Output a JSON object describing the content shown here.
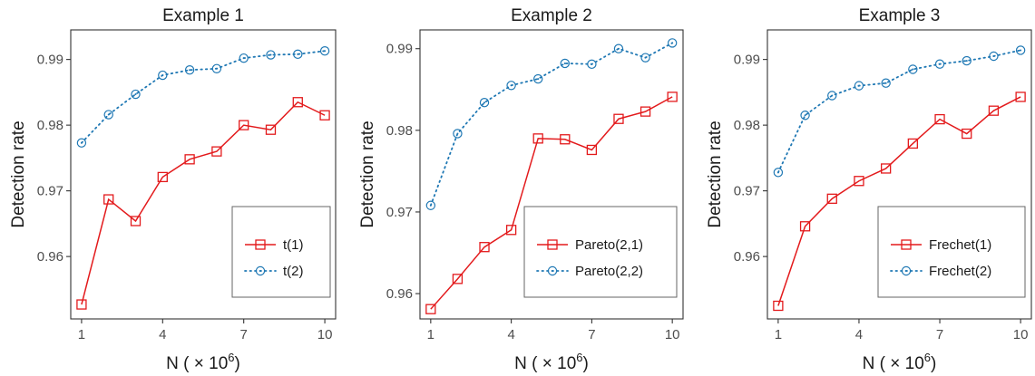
{
  "colors": {
    "series_solid": "#e31a1c",
    "series_dotted": "#1f78b4",
    "axis": "#333333",
    "legend_border": "#666666"
  },
  "chart_data": [
    {
      "type": "line",
      "title": "Example 1",
      "xlabel": "N ( × 10",
      "xlabel_sup": "6",
      "xlabel_close": ")",
      "ylabel": "Detection rate",
      "x": [
        1,
        2,
        3,
        4,
        5,
        6,
        7,
        8,
        9,
        10
      ],
      "xticks": [
        1,
        4,
        7,
        10
      ],
      "yticks": [
        0.96,
        0.97,
        0.98,
        0.99
      ],
      "ytick_labels": [
        "0.96",
        "0.97",
        "0.98",
        "0.99"
      ],
      "xlim": [
        0.6,
        10.4
      ],
      "ylim": [
        0.9505,
        0.9945
      ],
      "legend_position": "bottom-right",
      "grid": false,
      "series": [
        {
          "name": "t(1)",
          "marker": "square",
          "line": "solid",
          "values": [
            0.9527,
            0.9687,
            0.9654,
            0.9721,
            0.9748,
            0.976,
            0.98,
            0.9793,
            0.9835,
            0.9815
          ]
        },
        {
          "name": "t(2)",
          "marker": "circle",
          "line": "dotted",
          "values": [
            0.9773,
            0.9816,
            0.9847,
            0.9876,
            0.9884,
            0.9886,
            0.9902,
            0.9907,
            0.9908,
            0.9913
          ]
        }
      ]
    },
    {
      "type": "line",
      "title": "Example 2",
      "xlabel": "N ( × 10",
      "xlabel_sup": "6",
      "xlabel_close": ")",
      "ylabel": "Detection rate",
      "x": [
        1,
        2,
        3,
        4,
        5,
        6,
        7,
        8,
        9,
        10
      ],
      "xticks": [
        1,
        4,
        7,
        10
      ],
      "yticks": [
        0.96,
        0.97,
        0.98,
        0.99
      ],
      "ytick_labels": [
        "0.96",
        "0.97",
        "0.98",
        "0.99"
      ],
      "xlim": [
        0.6,
        10.4
      ],
      "ylim": [
        0.9569,
        0.9923
      ],
      "legend_position": "bottom-right",
      "grid": false,
      "series": [
        {
          "name": "Pareto(2,1)",
          "marker": "square",
          "line": "solid",
          "values": [
            0.9581,
            0.9618,
            0.9657,
            0.9678,
            0.979,
            0.9789,
            0.9776,
            0.9814,
            0.9823,
            0.9841
          ]
        },
        {
          "name": "Pareto(2,2)",
          "marker": "circle",
          "line": "dotted",
          "values": [
            0.9708,
            0.9796,
            0.9834,
            0.9855,
            0.9863,
            0.9882,
            0.9881,
            0.99,
            0.9889,
            0.9907
          ]
        }
      ]
    },
    {
      "type": "line",
      "title": "Example 3",
      "xlabel": "N ( × 10",
      "xlabel_sup": "6",
      "xlabel_close": ")",
      "ylabel": "Detection rate",
      "x": [
        1,
        2,
        3,
        4,
        5,
        6,
        7,
        8,
        9,
        10
      ],
      "xticks": [
        1,
        4,
        7,
        10
      ],
      "yticks": [
        0.96,
        0.97,
        0.98,
        0.99
      ],
      "ytick_labels": [
        "0.96",
        "0.97",
        "0.98",
        "0.99"
      ],
      "xlim": [
        0.6,
        10.4
      ],
      "ylim": [
        0.9505,
        0.9945
      ],
      "legend_position": "bottom-right",
      "grid": false,
      "series": [
        {
          "name": "Frechet(1)",
          "marker": "square",
          "line": "solid",
          "values": [
            0.9525,
            0.9646,
            0.9688,
            0.9715,
            0.9734,
            0.9772,
            0.9809,
            0.9787,
            0.9822,
            0.9843
          ]
        },
        {
          "name": "Frechet(2)",
          "marker": "circle",
          "line": "dotted",
          "values": [
            0.9728,
            0.9815,
            0.9845,
            0.986,
            0.9864,
            0.9885,
            0.9893,
            0.9898,
            0.9905,
            0.9914
          ]
        }
      ]
    }
  ]
}
